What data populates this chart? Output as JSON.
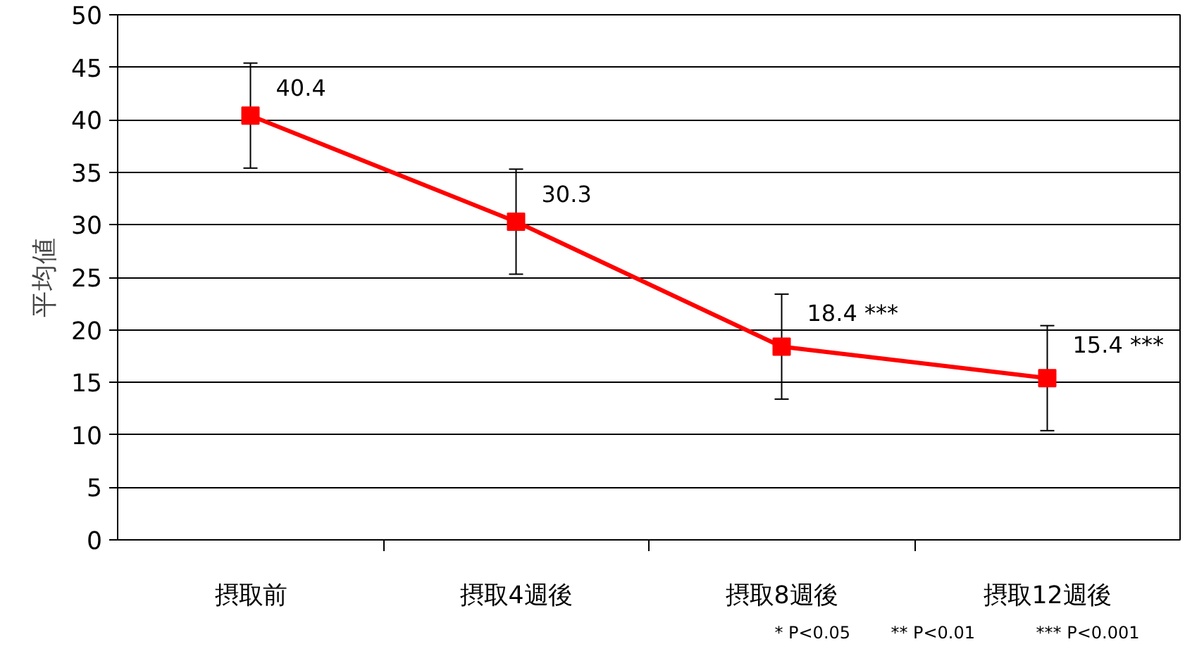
{
  "chart_data": {
    "type": "line",
    "ylabel": "平均値",
    "categories": [
      "摂取前",
      "摂取4週後",
      "摂取8週後",
      "摂取12週後"
    ],
    "series": [
      {
        "color": "#ff0000",
        "values": [
          40.4,
          30.3,
          18.4,
          15.4
        ],
        "errors": [
          5,
          5,
          5,
          5
        ]
      }
    ],
    "value_labels": [
      "40.4",
      "30.3",
      "18.4 ***",
      "15.4 ***"
    ],
    "marker": "square",
    "line_style": "solid",
    "ylim": [
      0,
      50
    ],
    "yticks": [
      0,
      5,
      10,
      15,
      20,
      25,
      30,
      35,
      40,
      45,
      50
    ],
    "grid": "y",
    "annotations": [
      "* P<0.05",
      "** P<0.01",
      "*** P<0.001"
    ]
  }
}
